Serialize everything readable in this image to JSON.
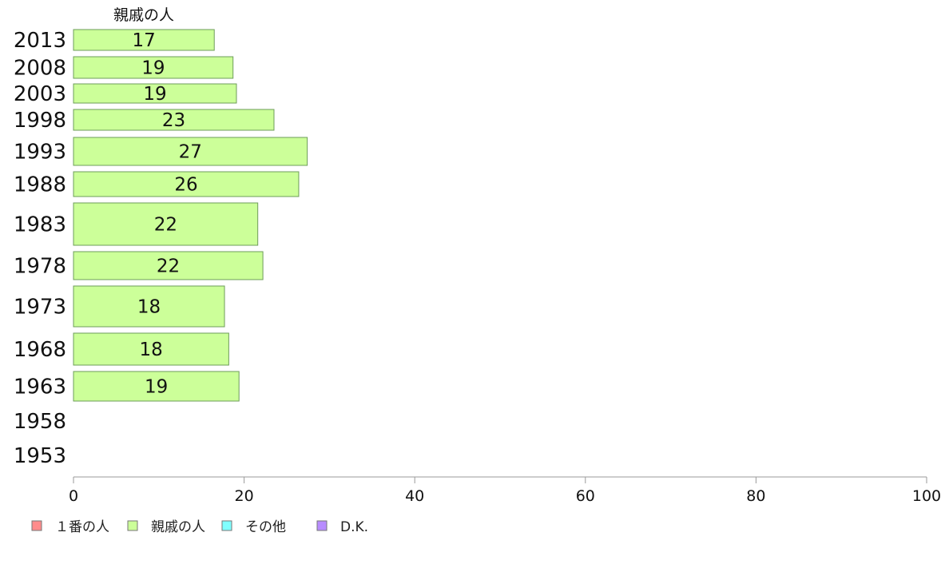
{
  "chart_data": {
    "type": "bar",
    "orientation": "horizontal",
    "column_title": "親戚の人",
    "categories": [
      "2013",
      "2008",
      "2003",
      "1998",
      "1993",
      "1988",
      "1983",
      "1978",
      "1973",
      "1968",
      "1963",
      "1958",
      "1953"
    ],
    "series": [
      {
        "name": "親戚の人",
        "color": "#ccff99",
        "values": [
          17,
          19,
          19,
          23,
          27,
          26,
          22,
          22,
          18,
          18,
          19,
          null,
          null
        ],
        "plotted_values": [
          16.5,
          18.7,
          19.1,
          23.5,
          27.4,
          26.4,
          21.6,
          22.2,
          17.7,
          18.2,
          19.4,
          null,
          null
        ]
      }
    ],
    "xlim": [
      0,
      100
    ],
    "xticks": [
      "0",
      "20",
      "40",
      "60",
      "80",
      "100"
    ],
    "grid": false,
    "legend_position": "bottom-left",
    "legend": [
      {
        "label": "１番の人",
        "color": "#ff8c8c"
      },
      {
        "label": "親戚の人",
        "color": "#ccff99"
      },
      {
        "label": "その他",
        "color": "#80ffff"
      },
      {
        "label": "D.K.",
        "color": "#b88cff"
      }
    ]
  }
}
